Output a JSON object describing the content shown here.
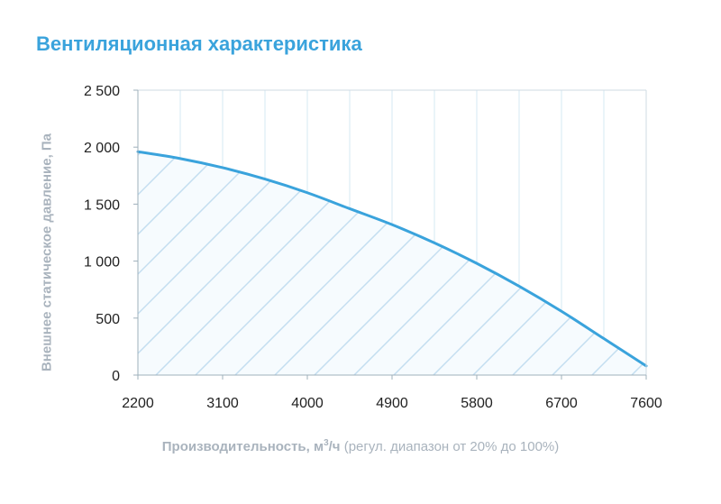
{
  "chart_data": {
    "type": "area",
    "title": "Вентиляционная характеристика",
    "ylabel": "Внешнее статическое давление, Па",
    "xlabel": {
      "main": "Производительность, м",
      "unit_sup": "3",
      "unit_tail": "/ч",
      "note": "(регул. диапазон от 20% до 100%)"
    },
    "xlim": [
      2200,
      7600
    ],
    "ylim": [
      0,
      2500
    ],
    "x_ticks": [
      2200,
      3100,
      4000,
      4900,
      5800,
      6700,
      7600
    ],
    "x_tick_labels": [
      "2200",
      "3100",
      "4000",
      "4900",
      "5800",
      "6700",
      "7600"
    ],
    "y_ticks": [
      0,
      500,
      1000,
      1500,
      2000,
      2500
    ],
    "y_tick_labels": [
      "0",
      "500",
      "1 000",
      "1 500",
      "2 000",
      "2 500"
    ],
    "grid": "vertical",
    "fill": "hatched",
    "series": [
      {
        "color": "#3aa3dc",
        "x": [
          2200,
          2650,
          3100,
          3550,
          4000,
          4450,
          4900,
          5350,
          5800,
          6250,
          6700,
          7150,
          7600
        ],
        "y": [
          1960,
          1900,
          1820,
          1720,
          1600,
          1460,
          1320,
          1160,
          980,
          780,
          560,
          320,
          80
        ]
      }
    ]
  }
}
